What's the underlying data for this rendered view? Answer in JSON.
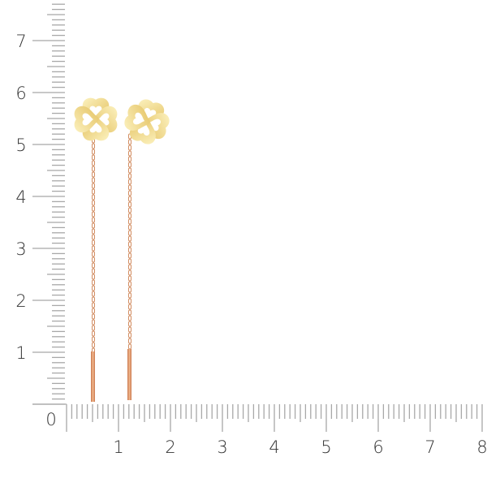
{
  "ruler": {
    "origin_label": "0",
    "x_labels": [
      "1",
      "2",
      "3",
      "4",
      "5",
      "6",
      "7",
      "8"
    ],
    "y_labels": [
      "1",
      "2",
      "3",
      "4",
      "5",
      "6",
      "7"
    ],
    "tick_color": "#a8a8a8",
    "label_color": "#333333"
  },
  "product": {
    "items": [
      "clover-threader-earring-left",
      "clover-threader-earring-right"
    ],
    "clover_color": "#f3dc8c",
    "chain_color": "#d9956a"
  }
}
